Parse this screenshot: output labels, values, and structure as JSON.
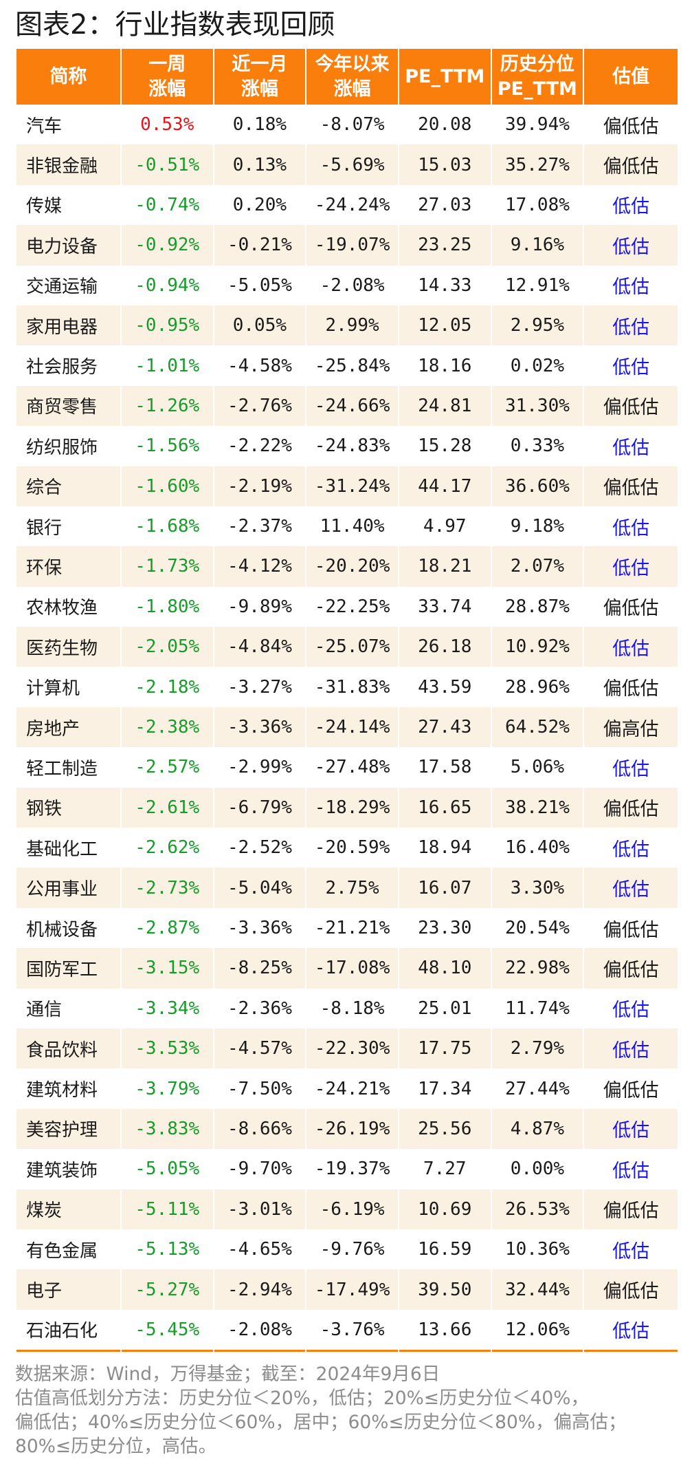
{
  "title": "图表2：行业指数表现回顾",
  "colors": {
    "header_bg": "#fa7e0b",
    "up": "#e8141b",
    "down": "#179c2a",
    "low": "#1b16e8",
    "stripe": "#fbf1e3"
  },
  "columns": [
    "简称",
    "一周\n涨幅",
    "近一月\n涨幅",
    "今年以来\n涨幅",
    "PE_TTM",
    "历史分位\nPE_TTM",
    "估值"
  ],
  "rows": [
    {
      "name": "汽车",
      "week": "0.53%",
      "month": "0.18%",
      "ytd": "-8.07%",
      "pe": "20.08",
      "pct": "39.94%",
      "val": "偏低估"
    },
    {
      "name": "非银金融",
      "week": "-0.51%",
      "month": "0.13%",
      "ytd": "-5.69%",
      "pe": "15.03",
      "pct": "35.27%",
      "val": "偏低估"
    },
    {
      "name": "传媒",
      "week": "-0.74%",
      "month": "0.20%",
      "ytd": "-24.24%",
      "pe": "27.03",
      "pct": "17.08%",
      "val": "低估"
    },
    {
      "name": "电力设备",
      "week": "-0.92%",
      "month": "-0.21%",
      "ytd": "-19.07%",
      "pe": "23.25",
      "pct": "9.16%",
      "val": "低估"
    },
    {
      "name": "交通运输",
      "week": "-0.94%",
      "month": "-5.05%",
      "ytd": "-2.08%",
      "pe": "14.33",
      "pct": "12.91%",
      "val": "低估"
    },
    {
      "name": "家用电器",
      "week": "-0.95%",
      "month": "0.05%",
      "ytd": "2.99%",
      "pe": "12.05",
      "pct": "2.95%",
      "val": "低估"
    },
    {
      "name": "社会服务",
      "week": "-1.01%",
      "month": "-4.58%",
      "ytd": "-25.84%",
      "pe": "18.16",
      "pct": "0.02%",
      "val": "低估"
    },
    {
      "name": "商贸零售",
      "week": "-1.26%",
      "month": "-2.76%",
      "ytd": "-24.66%",
      "pe": "24.81",
      "pct": "31.30%",
      "val": "偏低估"
    },
    {
      "name": "纺织服饰",
      "week": "-1.56%",
      "month": "-2.22%",
      "ytd": "-24.83%",
      "pe": "15.28",
      "pct": "0.33%",
      "val": "低估"
    },
    {
      "name": "综合",
      "week": "-1.60%",
      "month": "-2.19%",
      "ytd": "-31.24%",
      "pe": "44.17",
      "pct": "36.60%",
      "val": "偏低估"
    },
    {
      "name": "银行",
      "week": "-1.68%",
      "month": "-2.37%",
      "ytd": "11.40%",
      "pe": "4.97",
      "pct": "9.18%",
      "val": "低估"
    },
    {
      "name": "环保",
      "week": "-1.73%",
      "month": "-4.12%",
      "ytd": "-20.20%",
      "pe": "18.21",
      "pct": "2.07%",
      "val": "低估"
    },
    {
      "name": "农林牧渔",
      "week": "-1.80%",
      "month": "-9.89%",
      "ytd": "-22.25%",
      "pe": "33.74",
      "pct": "28.87%",
      "val": "偏低估"
    },
    {
      "name": "医药生物",
      "week": "-2.05%",
      "month": "-4.84%",
      "ytd": "-25.07%",
      "pe": "26.18",
      "pct": "10.92%",
      "val": "低估"
    },
    {
      "name": "计算机",
      "week": "-2.18%",
      "month": "-3.27%",
      "ytd": "-31.83%",
      "pe": "43.59",
      "pct": "28.96%",
      "val": "偏低估"
    },
    {
      "name": "房地产",
      "week": "-2.38%",
      "month": "-3.36%",
      "ytd": "-24.14%",
      "pe": "27.43",
      "pct": "64.52%",
      "val": "偏高估"
    },
    {
      "name": "轻工制造",
      "week": "-2.57%",
      "month": "-2.99%",
      "ytd": "-27.48%",
      "pe": "17.58",
      "pct": "5.06%",
      "val": "低估"
    },
    {
      "name": "钢铁",
      "week": "-2.61%",
      "month": "-6.79%",
      "ytd": "-18.29%",
      "pe": "16.65",
      "pct": "38.21%",
      "val": "偏低估"
    },
    {
      "name": "基础化工",
      "week": "-2.62%",
      "month": "-2.52%",
      "ytd": "-20.59%",
      "pe": "18.94",
      "pct": "16.40%",
      "val": "低估"
    },
    {
      "name": "公用事业",
      "week": "-2.73%",
      "month": "-5.04%",
      "ytd": "2.75%",
      "pe": "16.07",
      "pct": "3.30%",
      "val": "低估"
    },
    {
      "name": "机械设备",
      "week": "-2.87%",
      "month": "-3.36%",
      "ytd": "-21.21%",
      "pe": "23.30",
      "pct": "20.54%",
      "val": "偏低估"
    },
    {
      "name": "国防军工",
      "week": "-3.15%",
      "month": "-8.25%",
      "ytd": "-17.08%",
      "pe": "48.10",
      "pct": "22.98%",
      "val": "偏低估"
    },
    {
      "name": "通信",
      "week": "-3.34%",
      "month": "-2.36%",
      "ytd": "-8.18%",
      "pe": "25.01",
      "pct": "11.74%",
      "val": "低估"
    },
    {
      "name": "食品饮料",
      "week": "-3.53%",
      "month": "-4.57%",
      "ytd": "-22.30%",
      "pe": "17.75",
      "pct": "2.79%",
      "val": "低估"
    },
    {
      "name": "建筑材料",
      "week": "-3.79%",
      "month": "-7.50%",
      "ytd": "-24.21%",
      "pe": "17.34",
      "pct": "27.44%",
      "val": "偏低估"
    },
    {
      "name": "美容护理",
      "week": "-3.83%",
      "month": "-8.66%",
      "ytd": "-26.19%",
      "pe": "25.56",
      "pct": "4.87%",
      "val": "低估"
    },
    {
      "name": "建筑装饰",
      "week": "-5.05%",
      "month": "-9.70%",
      "ytd": "-19.37%",
      "pe": "7.27",
      "pct": "0.00%",
      "val": "低估"
    },
    {
      "name": "煤炭",
      "week": "-5.11%",
      "month": "-3.01%",
      "ytd": "-6.19%",
      "pe": "10.69",
      "pct": "26.53%",
      "val": "偏低估"
    },
    {
      "name": "有色金属",
      "week": "-5.13%",
      "month": "-4.65%",
      "ytd": "-9.76%",
      "pe": "16.59",
      "pct": "10.36%",
      "val": "低估"
    },
    {
      "name": "电子",
      "week": "-5.27%",
      "month": "-2.94%",
      "ytd": "-17.49%",
      "pe": "39.50",
      "pct": "32.44%",
      "val": "偏低估"
    },
    {
      "name": "石油石化",
      "week": "-5.45%",
      "month": "-2.08%",
      "ytd": "-3.76%",
      "pe": "13.66",
      "pct": "12.06%",
      "val": "低估"
    }
  ],
  "notes": [
    "数据来源：Wind，万得基金；截至：2024年9月6日",
    "估值高低划分方法：历史分位＜20%，低估；20%≤历史分位＜40%，",
    "偏低估；40%≤历史分位＜60%，居中；60%≤历史分位＜80%，偏高估；",
    "80%≤历史分位，高估。"
  ]
}
